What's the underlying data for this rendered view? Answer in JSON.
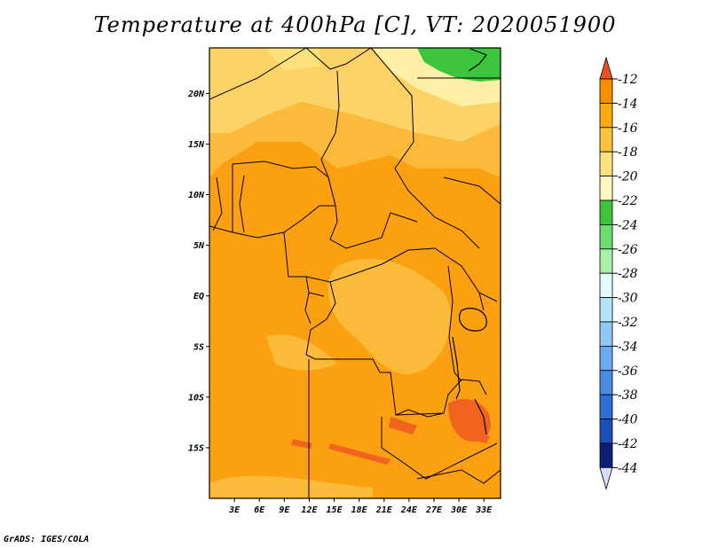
{
  "title": "Temperature at 400hPa [C], VT: 2020051900",
  "credit": "GrADS: IGES/COLA",
  "map": {
    "lat_ticks": [
      {
        "lat": 20,
        "label": "20N"
      },
      {
        "lat": 15,
        "label": "15N"
      },
      {
        "lat": 10,
        "label": "10N"
      },
      {
        "lat": 5,
        "label": "5N"
      },
      {
        "lat": 0,
        "label": "EQ"
      },
      {
        "lat": -5,
        "label": "5S"
      },
      {
        "lat": -10,
        "label": "10S"
      },
      {
        "lat": -15,
        "label": "15S"
      }
    ],
    "lon_ticks": [
      {
        "lon": 3,
        "label": "3E"
      },
      {
        "lon": 6,
        "label": "6E"
      },
      {
        "lon": 9,
        "label": "9E"
      },
      {
        "lon": 12,
        "label": "12E"
      },
      {
        "lon": 15,
        "label": "15E"
      },
      {
        "lon": 18,
        "label": "18E"
      },
      {
        "lon": 21,
        "label": "21E"
      },
      {
        "lon": 24,
        "label": "24E"
      },
      {
        "lon": 27,
        "label": "27E"
      },
      {
        "lon": 30,
        "label": "30E"
      },
      {
        "lon": 33,
        "label": "33E"
      }
    ],
    "lon_range": [
      0,
      35
    ],
    "lat_range": [
      -20,
      24.5
    ]
  },
  "colorbar": {
    "labels": [
      "-12",
      "-14",
      "-16",
      "-18",
      "-20",
      "-22",
      "-24",
      "-26",
      "-28",
      "-30",
      "-32",
      "-34",
      "-36",
      "-38",
      "-40",
      "-42",
      "-44"
    ],
    "colors": [
      "#f0501e",
      "#fa8c00",
      "#fbaa14",
      "#fbc43c",
      "#fde17a",
      "#fff9c0",
      "#3cc43c",
      "#6edc6e",
      "#a8f0a8",
      "#e3fbfb",
      "#b4e4f8",
      "#8fc8f4",
      "#6aaaf0",
      "#4b8ce6",
      "#2f6ed6",
      "#1a4eba",
      "#0c1e78",
      "#d8dcf8"
    ]
  }
}
